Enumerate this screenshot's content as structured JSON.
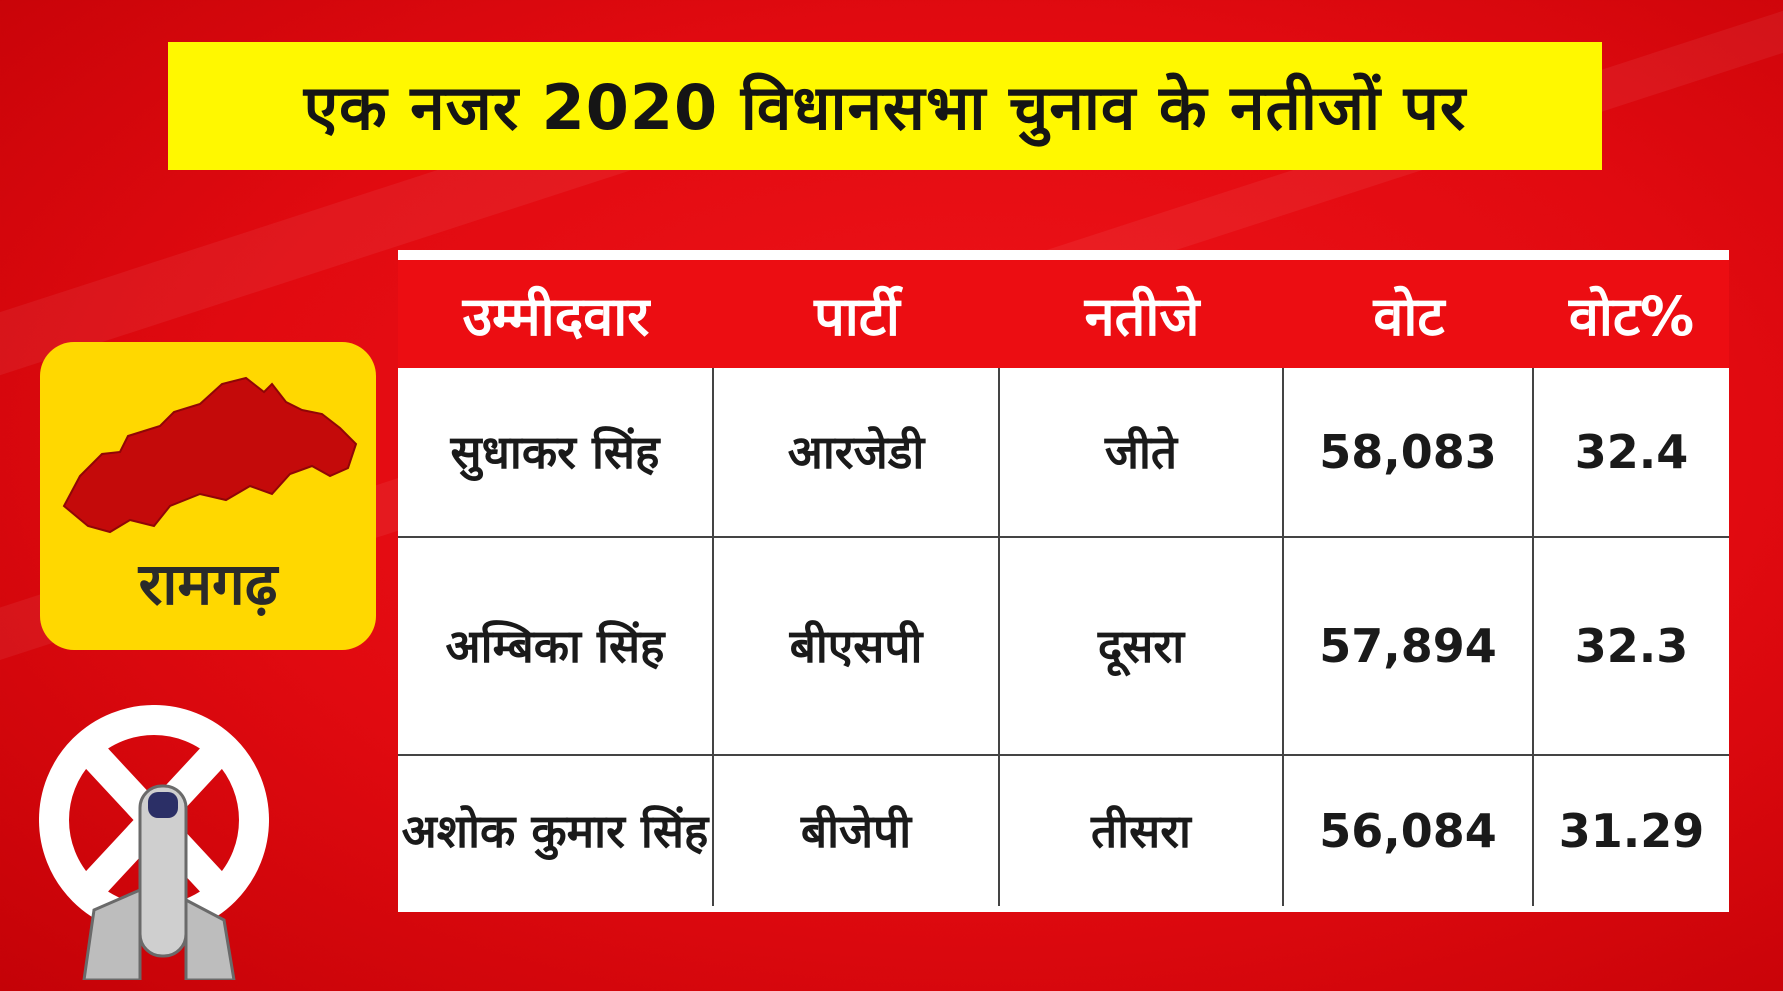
{
  "title": "एक नजर 2020 विधानसभा चुनाव के नतीजों पर",
  "constituency": "रामगढ़",
  "colors": {
    "background": "#e10a10",
    "title_bg": "#fff800",
    "badge_bg": "#ffd800",
    "header_bg": "#ec0d12",
    "map_fill": "#c40a0a"
  },
  "icons": {
    "map": "constituency-map-icon",
    "symbol": "election-swastika-symbol-icon",
    "finger": "inked-finger-icon"
  },
  "table": {
    "headers": [
      "उम्मीदवार",
      "पार्टी",
      "नतीजे",
      "वोट",
      "वोट%"
    ],
    "rows": [
      {
        "candidate": "सुधाकर सिंह",
        "party": "आरजेडी",
        "result": "जीते",
        "votes": "58,083",
        "vote_pct": "32.4"
      },
      {
        "candidate": "अम्बिका सिंह",
        "party": "बीएसपी",
        "result": "दूसरा",
        "votes": "57,894",
        "vote_pct": "32.3"
      },
      {
        "candidate": "अशोक कुमार सिंह",
        "party": "बीजेपी",
        "result": "तीसरा",
        "votes": "56,084",
        "vote_pct": "31.29"
      }
    ]
  }
}
